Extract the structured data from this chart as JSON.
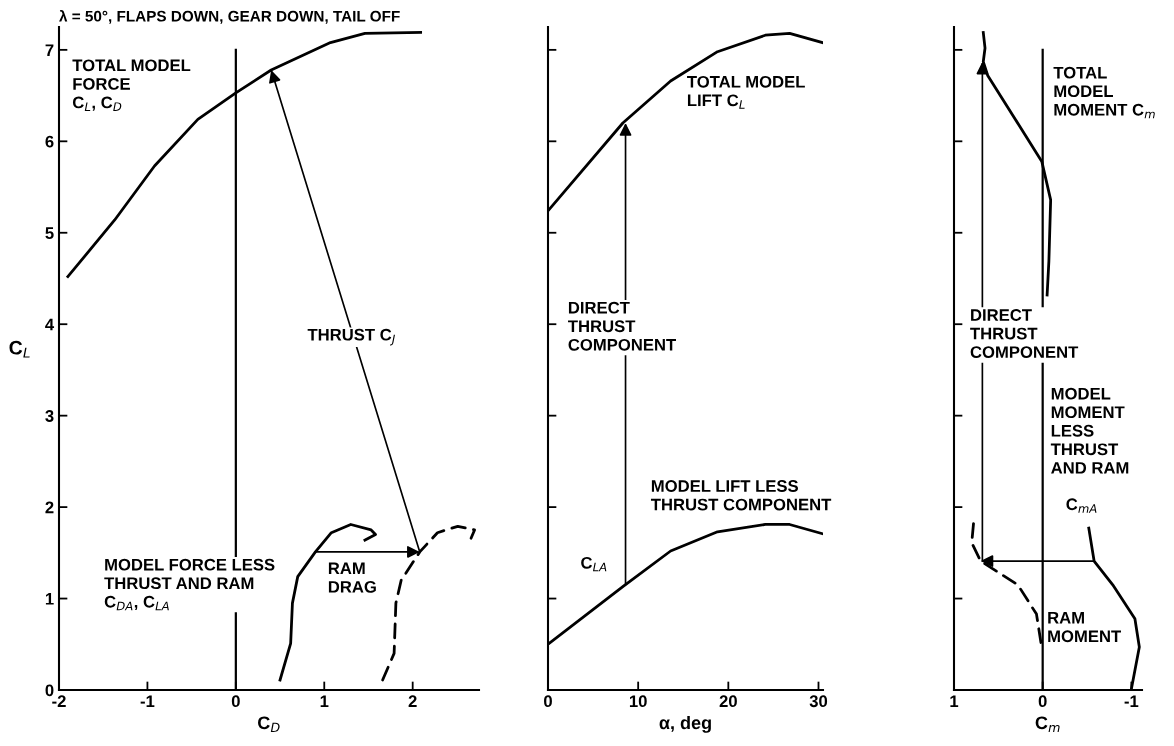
{
  "chart_data": [
    {
      "type": "line",
      "title": "λ = 50°, FLAPS DOWN, GEAR DOWN, TAIL OFF",
      "xlabel": "C$_{D}$",
      "ylabel": "C$_{L}$",
      "xlim": [
        -2,
        2.75
      ],
      "xticks": [
        -2,
        -1,
        0,
        1,
        2
      ],
      "ylim": [
        0,
        7.25
      ],
      "yticks": [
        0,
        1,
        2,
        3,
        4,
        5,
        6,
        7
      ],
      "series": [
        {
          "color": "#000000",
          "line_style": "solid",
          "x": [
            -1.9,
            -1.37,
            -0.92,
            -0.43,
            0,
            0.4,
            1.07,
            1.46,
            2.09
          ],
          "values": [
            4.52,
            5.14,
            5.73,
            6.24,
            6.53,
            6.78,
            7.08,
            7.18,
            7.19
          ]
        },
        {
          "color": "#000000",
          "line_style": "solid",
          "x": [
            0.5,
            0.62,
            0.64,
            0.7,
            0.9,
            1.08,
            1.3,
            1.53,
            1.58,
            1.46
          ],
          "values": [
            0.11,
            0.51,
            0.95,
            1.24,
            1.51,
            1.72,
            1.81,
            1.75,
            1.7,
            1.64
          ]
        },
        {
          "color": "#000000",
          "line_style": "dashed",
          "x": [
            1.66,
            1.79,
            1.81,
            1.87,
            2.08,
            2.28,
            2.51,
            2.7,
            2.66
          ],
          "values": [
            0.11,
            0.4,
            0.95,
            1.2,
            1.51,
            1.72,
            1.79,
            1.75,
            1.66
          ]
        }
      ],
      "ref_lines": [
        {
          "axis": "x",
          "value": 0,
          "color": "#000000"
        }
      ],
      "annotations": [
        "TOTAL MODEL\nFORCE\nC$_{L}$, C$_{D}$",
        "THRUST C$_{J}$",
        "MODEL FORCE LESS\nTHRUST AND RAM\nC$_{DA}$, C$_{LA}$",
        {
          "text": "RAM\nDRAG",
          "x": 0.9,
          "y": 1.51
        }
      ]
    },
    {
      "type": "line",
      "xlabel": "α, deg",
      "tick_labels": "x",
      "xlim": [
        0,
        30.5
      ],
      "xticks": [
        0,
        10,
        20,
        30
      ],
      "ylim": [
        0,
        7.25
      ],
      "yticks": [
        0,
        1,
        2,
        3,
        4,
        5,
        6,
        7
      ],
      "series": [
        {
          "color": "#000000",
          "line_style": "solid",
          "x": [
            0,
            8.3,
            13.6,
            18.8,
            24.1,
            26.8,
            30.4
          ],
          "values": [
            5.24,
            6.2,
            6.66,
            6.98,
            7.16,
            7.18,
            7.08
          ]
        },
        {
          "color": "#000000",
          "line_style": "solid",
          "x": [
            0,
            8.3,
            13.6,
            18.8,
            24.1,
            26.8,
            30.4
          ],
          "values": [
            0.5,
            1.13,
            1.52,
            1.73,
            1.81,
            1.81,
            1.71
          ]
        }
      ],
      "annotations": [
        "TOTAL MODEL\nLIFT C$_{L}$",
        "DIRECT\nTHRUST\nCOMPONENT",
        "MODEL LIFT LESS\nTHRUST COMPONENT",
        "C$_{LA}$"
      ]
    },
    {
      "type": "line",
      "xlabel": "C$_{m}$",
      "tick_labels": "x",
      "xlim": [
        1,
        -1.12
      ],
      "xticks": [
        1,
        0,
        -1
      ],
      "ylim": [
        0,
        7.25
      ],
      "yticks": [
        0,
        1,
        2,
        3,
        4,
        5,
        6,
        7
      ],
      "series": [
        {
          "color": "#000000",
          "line_style": "solid",
          "x": [
            0.67,
            0.65,
            0.67,
            0.62,
            0.01,
            -0.09,
            -0.07,
            -0.05
          ],
          "values": [
            7.19,
            7.02,
            6.87,
            6.72,
            5.78,
            5.36,
            4.69,
            4.32
          ]
        },
        {
          "color": "#000000",
          "line_style": "solid",
          "x": [
            -0.52,
            -0.58,
            -0.79,
            -1.04,
            -1.09,
            -1.0
          ],
          "values": [
            1.77,
            1.41,
            1.15,
            0.78,
            0.47,
            0.01
          ]
        },
        {
          "color": "#000000",
          "line_style": "dashed",
          "x": [
            0.78,
            0.8,
            0.7,
            0.28,
            0.07,
            0.01
          ],
          "values": [
            1.82,
            1.61,
            1.41,
            1.15,
            0.83,
            0.46
          ]
        }
      ],
      "ref_lines": [
        {
          "axis": "x",
          "value": 0,
          "color": "#000000"
        }
      ],
      "annotations": [
        "TOTAL\nMODEL\nMOMENT C$_{m}$",
        "DIRECT\nTHRUST\nCOMPONENT",
        "MODEL\nMOMENT\nLESS\nTHRUST\nAND RAM",
        "C$_{mA}$",
        "RAM\nMOMENT"
      ]
    }
  ]
}
